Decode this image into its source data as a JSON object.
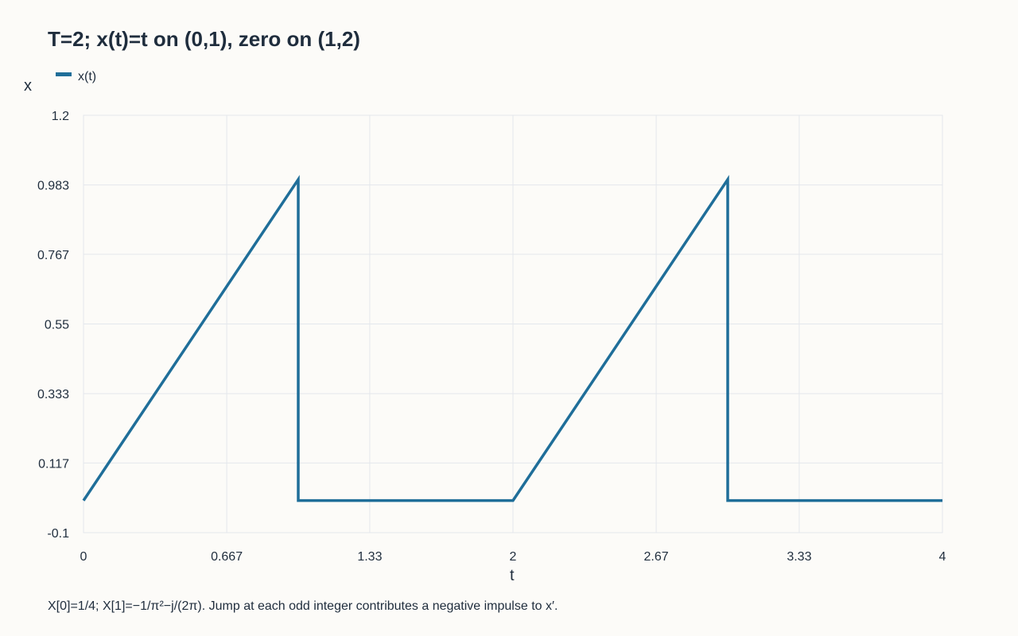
{
  "chart_data": {
    "type": "line",
    "title": "T=2; x(t)=t on (0,1), zero on (1,2)",
    "xlabel": "t",
    "ylabel": "x",
    "xlim": [
      0,
      4
    ],
    "ylim": [
      -0.1,
      1.2
    ],
    "x_ticks": [
      "0",
      "0.667",
      "1.33",
      "2",
      "2.67",
      "3.33",
      "4"
    ],
    "x_tick_values": [
      0,
      0.667,
      1.333,
      2,
      2.667,
      3.333,
      4
    ],
    "y_ticks": [
      "-0.1",
      "0.117",
      "0.333",
      "0.55",
      "0.767",
      "0.983",
      "1.2"
    ],
    "y_tick_values": [
      -0.1,
      0.117,
      0.333,
      0.55,
      0.767,
      0.983,
      1.2
    ],
    "grid": true,
    "legend_position": "top-left",
    "series": [
      {
        "name": "x(t)",
        "color": "#1f6e99",
        "points": [
          [
            0,
            0
          ],
          [
            1,
            1
          ],
          [
            1,
            0
          ],
          [
            2,
            0
          ],
          [
            3,
            1
          ],
          [
            3,
            0
          ],
          [
            4,
            0
          ]
        ]
      }
    ],
    "annotation": "X[0]=1/4; X[1]=−1/π²−j/(2π). Jump at each odd integer contributes a negative impulse to x′."
  }
}
